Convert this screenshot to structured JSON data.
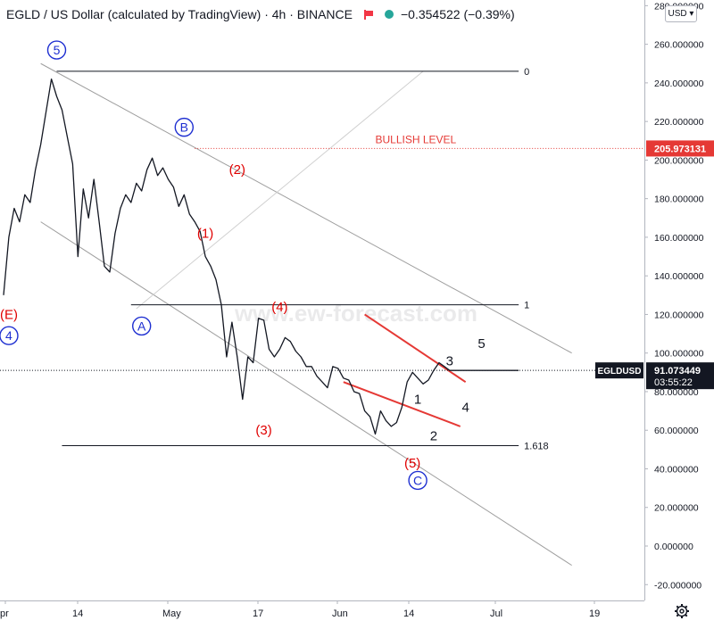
{
  "header": {
    "title": "EGLD / US Dollar (calculated by TradingView) · 4h · BINANCE",
    "change": "−0.354522 (−0.39%)",
    "currency_button": "USD ▾",
    "status_color": "#26a69a"
  },
  "price_axis": {
    "ticks": [
      "280.000000",
      "260.000000",
      "240.000000",
      "220.000000",
      "200.000000",
      "180.000000",
      "160.000000",
      "140.000000",
      "120.000000",
      "100.000000",
      "80.000000",
      "60.000000",
      "40.000000",
      "20.000000",
      "0.000000",
      "-20.000000"
    ],
    "bullish_tag": "205.973131",
    "symbol_tag": "EGLDUSD",
    "last_price_tag": "91.073449",
    "countdown_tag": "03:55:22"
  },
  "time_axis": {
    "ticks": [
      "pr",
      "14",
      "May",
      "17",
      "Jun",
      "14",
      "Jul",
      "19"
    ]
  },
  "chart_data": {
    "type": "line",
    "title": "EGLD / US Dollar (calculated by TradingView) · 4h · BINANCE",
    "xlabel": "",
    "ylabel": "",
    "ylim": [
      -25,
      285
    ],
    "x_unit": "days from first visible bar",
    "grid": false,
    "series": [
      {
        "name": "EGLDUSD",
        "x": [
          0,
          1,
          2,
          3,
          4,
          5,
          6,
          7,
          8,
          9,
          10,
          11,
          12,
          13,
          14,
          15,
          16,
          17,
          18,
          19,
          20,
          21,
          22,
          23,
          24,
          25,
          26,
          27,
          28,
          29,
          30,
          31,
          32,
          33,
          34,
          35,
          36,
          37,
          38,
          39,
          40,
          41,
          42,
          43,
          44,
          45,
          46,
          47,
          48,
          49,
          50,
          51,
          52,
          53,
          54,
          55,
          56,
          57,
          58,
          59,
          60,
          61,
          62,
          63,
          64,
          65,
          66,
          67,
          68,
          69,
          70,
          71,
          72,
          73,
          74,
          75,
          76,
          77,
          78,
          79,
          80,
          81,
          82,
          83,
          84,
          85,
          86,
          87,
          88,
          89,
          90,
          91,
          92,
          93,
          94,
          95,
          96,
          97
        ],
        "values": [
          130,
          160,
          175,
          168,
          182,
          178,
          195,
          208,
          225,
          242,
          233,
          226,
          212,
          198,
          150,
          185,
          170,
          190,
          168,
          145,
          142,
          162,
          175,
          182,
          178,
          188,
          184,
          195,
          201,
          192,
          196,
          190,
          186,
          176,
          182,
          172,
          168,
          163,
          150,
          145,
          138,
          125,
          98,
          116,
          98,
          76,
          98,
          95,
          118,
          117,
          102,
          98,
          102,
          108,
          106,
          101,
          98,
          93,
          93,
          88,
          85,
          82,
          93,
          92,
          87,
          86,
          80,
          79,
          70,
          67,
          58,
          70,
          65,
          62,
          64,
          72,
          85,
          90,
          87,
          84,
          86,
          91,
          95,
          93,
          91,
          91,
          91,
          91,
          91,
          91,
          91,
          91,
          91,
          91,
          91,
          91,
          91,
          91
        ]
      }
    ],
    "horizontal_levels": [
      {
        "price": 246,
        "label": "0",
        "style": "solid"
      },
      {
        "price": 125,
        "label": "1",
        "style": "solid"
      },
      {
        "price": 52,
        "label": "1.618",
        "style": "solid"
      },
      {
        "price": 206,
        "label": "BULLISH LEVEL",
        "style": "dotted",
        "color": "#e53935"
      },
      {
        "price": 91,
        "label": "",
        "style": "dotted",
        "color": "#131722"
      }
    ],
    "trend_lines": [
      {
        "from": [
          7,
          250
        ],
        "to": [
          107,
          100
        ],
        "color": "#9e9e9e"
      },
      {
        "from": [
          7,
          168
        ],
        "to": [
          107,
          -10
        ],
        "color": "#9e9e9e"
      },
      {
        "from": [
          25,
          123
        ],
        "to": [
          79,
          246
        ],
        "color": "#d0d0d0"
      },
      {
        "from": [
          68,
          120
        ],
        "to": [
          87,
          85
        ],
        "color": "#e53935"
      },
      {
        "from": [
          64,
          85
        ],
        "to": [
          86,
          62
        ],
        "color": "#e53935"
      }
    ],
    "wave_labels": [
      {
        "text": "5",
        "style": "circle-blue",
        "x": 10,
        "y": 257
      },
      {
        "text": "(E)",
        "style": "red",
        "x": 1,
        "y": 120
      },
      {
        "text": "4",
        "style": "circle-blue",
        "x": 1,
        "y": 109
      },
      {
        "text": "A",
        "style": "circle-blue",
        "x": 26,
        "y": 114
      },
      {
        "text": "B",
        "style": "circle-blue",
        "x": 34,
        "y": 217
      },
      {
        "text": "(1)",
        "style": "red",
        "x": 38,
        "y": 162
      },
      {
        "text": "(2)",
        "style": "red",
        "x": 44,
        "y": 195
      },
      {
        "text": "(3)",
        "style": "red",
        "x": 49,
        "y": 60
      },
      {
        "text": "(4)",
        "style": "red",
        "x": 52,
        "y": 124
      },
      {
        "text": "(5)",
        "style": "red",
        "x": 77,
        "y": 43
      },
      {
        "text": "C",
        "style": "circle-blue",
        "x": 78,
        "y": 34
      },
      {
        "text": "1",
        "style": "black",
        "x": 78,
        "y": 76
      },
      {
        "text": "2",
        "style": "black",
        "x": 81,
        "y": 57
      },
      {
        "text": "3",
        "style": "black",
        "x": 84,
        "y": 96
      },
      {
        "text": "4",
        "style": "black",
        "x": 87,
        "y": 72
      },
      {
        "text": "5",
        "style": "black",
        "x": 90,
        "y": 105
      }
    ],
    "watermark": "www.ew-forecast.com"
  }
}
